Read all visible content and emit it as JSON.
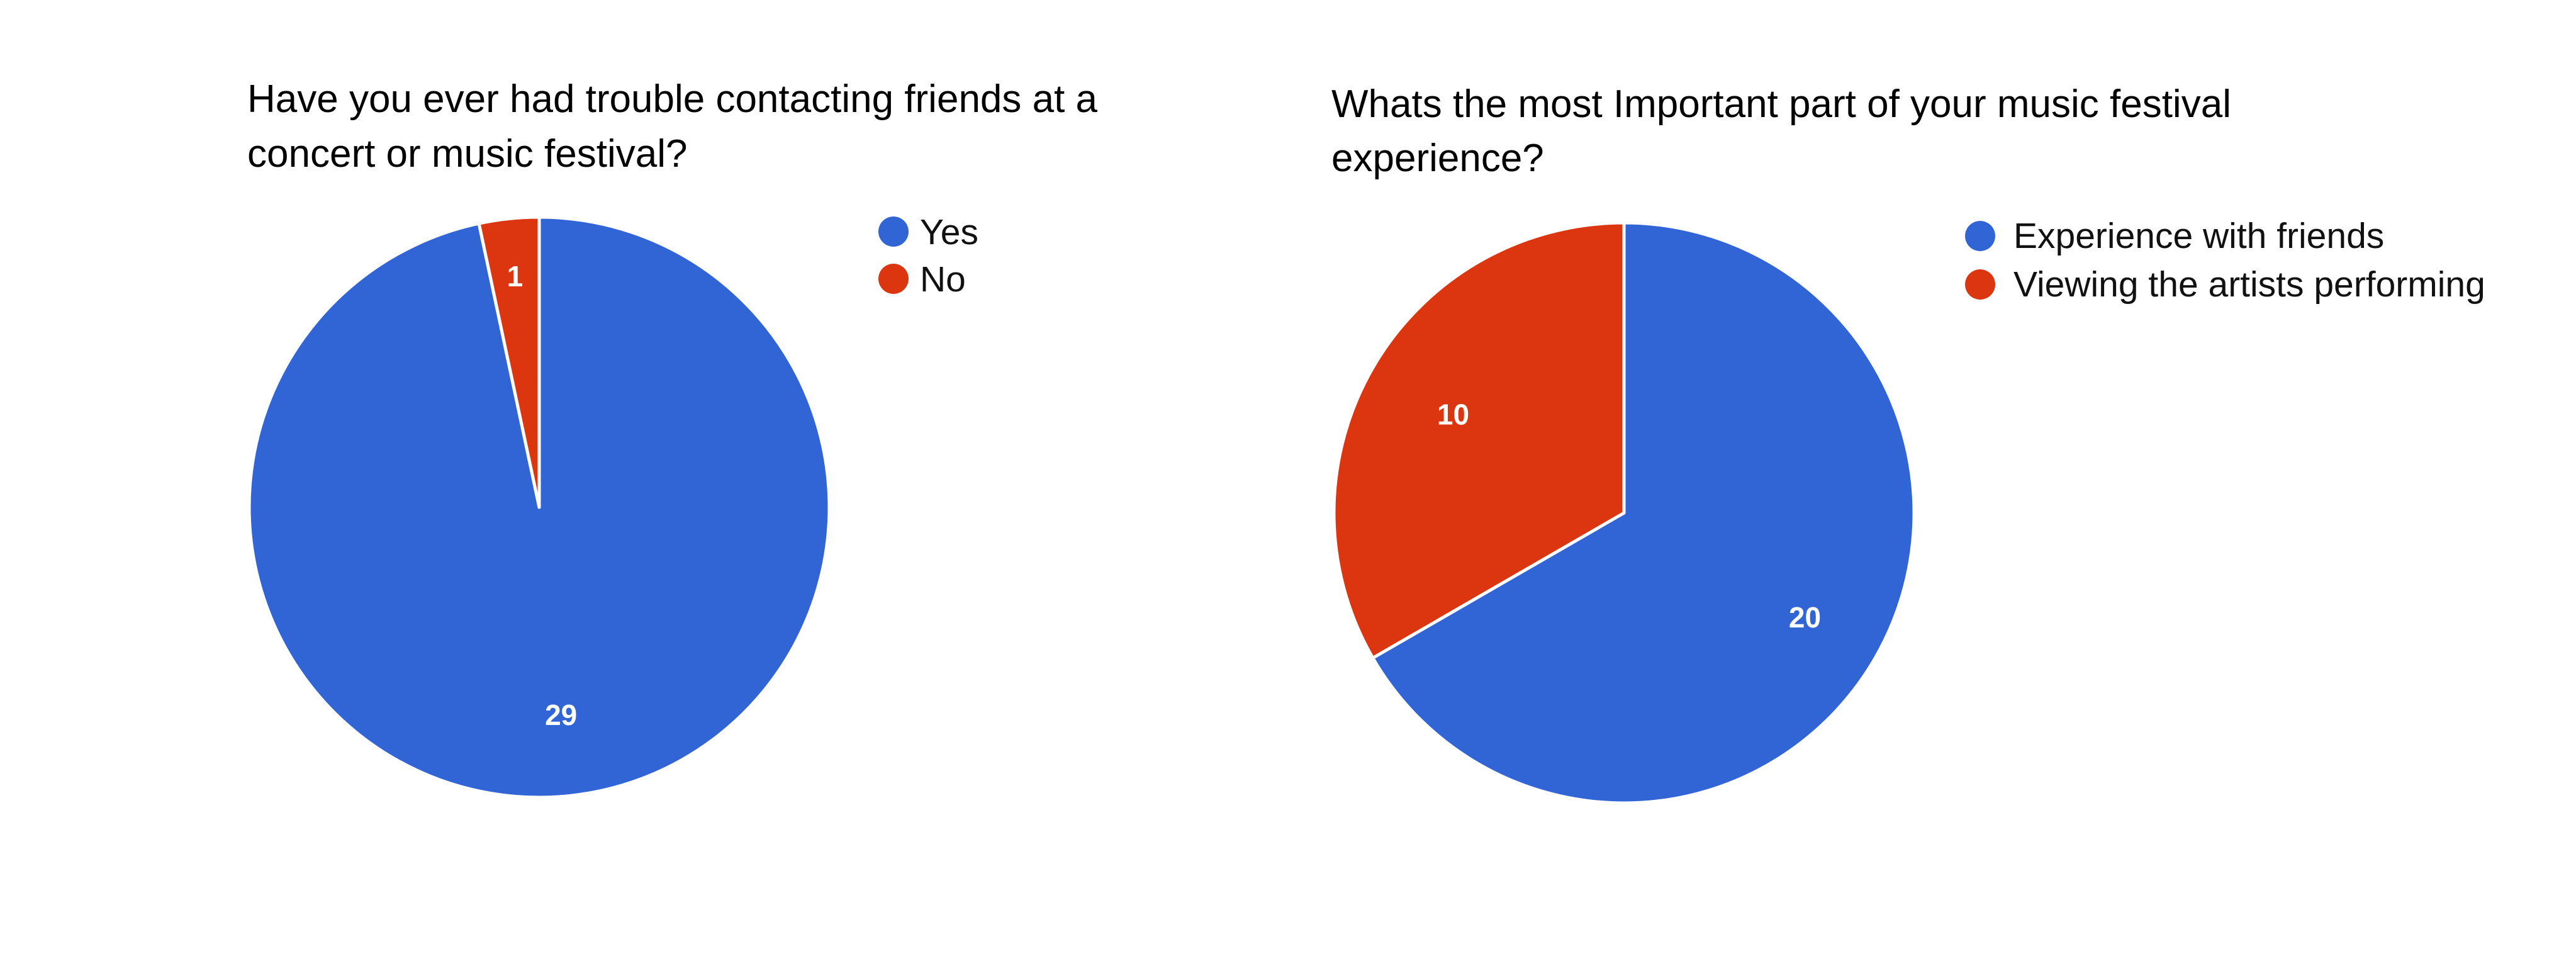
{
  "chart_data": [
    {
      "type": "pie",
      "title_lines": [
        "Have you ever had trouble contacting friends at a",
        "concert or music festival?"
      ],
      "categories": [
        "Yes",
        "No"
      ],
      "values": [
        29,
        1
      ],
      "colors": [
        "#3164D4",
        "#DC3611"
      ],
      "legend_position": "right"
    },
    {
      "type": "pie",
      "title_lines": [
        "Whats the most Important part of your music festival",
        "experience?"
      ],
      "categories": [
        "Experience with friends",
        "Viewing the artists performing"
      ],
      "values": [
        20,
        10
      ],
      "colors": [
        "#3164D4",
        "#DC3611"
      ],
      "legend_position": "right"
    }
  ]
}
